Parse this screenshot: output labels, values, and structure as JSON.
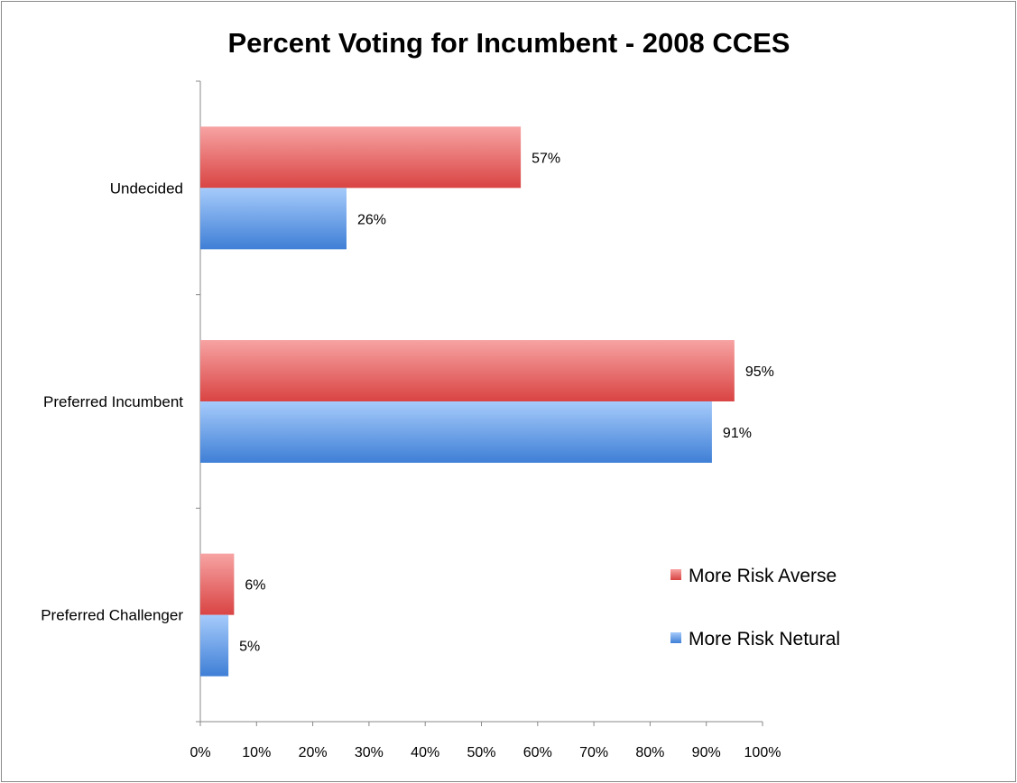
{
  "chart_data": {
    "type": "bar",
    "orientation": "horizontal",
    "title": "Percent Voting for Incumbent - 2008 CCES",
    "xlabel": "",
    "ylabel": "",
    "categories": [
      "Undecided",
      "Preferred Incumbent",
      "Preferred Challenger"
    ],
    "series": [
      {
        "name": "More Risk Averse",
        "values": [
          57,
          95,
          6
        ],
        "labels": [
          "57%",
          "95%",
          "6%"
        ],
        "color": "#e0504f"
      },
      {
        "name": "More Risk Netural",
        "values": [
          26,
          91,
          5
        ],
        "labels": [
          "26%",
          "91%",
          "5%"
        ],
        "color": "#5c9ae8"
      }
    ],
    "xlim": [
      0,
      100
    ],
    "xticks": [
      0,
      10,
      20,
      30,
      40,
      50,
      60,
      70,
      80,
      90,
      100
    ],
    "xtick_labels": [
      "0%",
      "10%",
      "20%",
      "30%",
      "40%",
      "50%",
      "60%",
      "70%",
      "80%",
      "90%",
      "100%"
    ],
    "grid": false,
    "legend_position": "bottom-right"
  }
}
